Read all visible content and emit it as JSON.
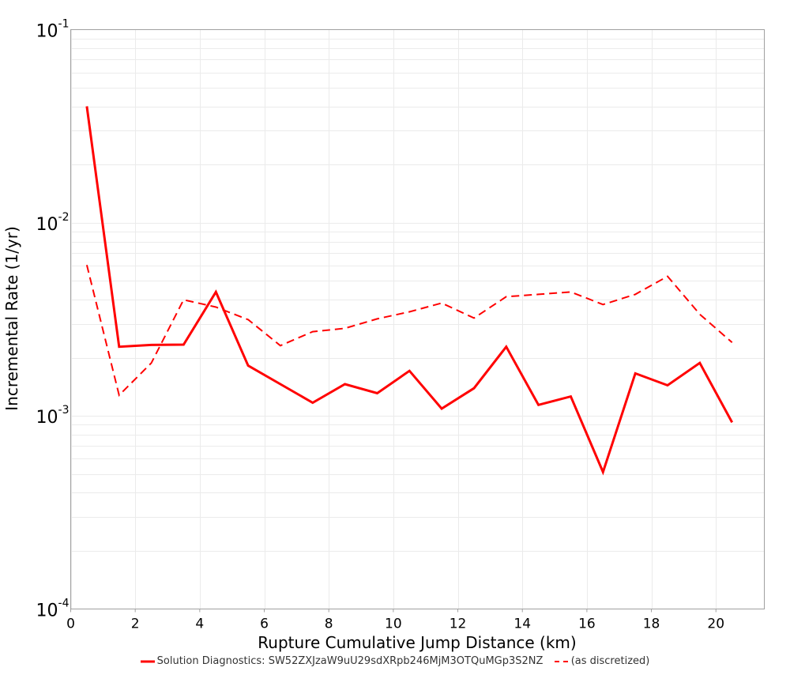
{
  "chart_data": {
    "type": "line",
    "title": "",
    "xlabel": "Rupture Cumulative Jump Distance (km)",
    "ylabel": "Incremental Rate (1/yr)",
    "xlim": [
      0,
      21.5
    ],
    "ylim": [
      0.0001,
      0.1
    ],
    "yscale": "log",
    "grid": true,
    "legend_position": "bottom",
    "x_ticks": [
      0,
      2,
      4,
      6,
      8,
      10,
      12,
      14,
      16,
      18,
      20
    ],
    "y_ticks": [
      {
        "base": "10",
        "exp": "-1",
        "value": 0.1
      },
      {
        "base": "10",
        "exp": "-2",
        "value": 0.01
      },
      {
        "base": "10",
        "exp": "-3",
        "value": 0.001
      },
      {
        "base": "10",
        "exp": "-4",
        "value": 0.0001
      }
    ],
    "x": [
      0.5,
      1.5,
      2.5,
      3.5,
      4.5,
      5.5,
      6.5,
      7.5,
      8.5,
      9.5,
      10.5,
      11.5,
      12.5,
      13.5,
      14.5,
      15.5,
      16.5,
      17.5,
      18.5,
      19.5,
      20.5
    ],
    "series": [
      {
        "name": "Solution Diagnostics: SW52ZXJzaW9uU29sdXRpb246MjM3OTQuMGp3S2NZ",
        "style": "solid",
        "color": "#ff0000",
        "values": [
          0.0401,
          0.00228,
          0.00233,
          0.00234,
          0.00438,
          0.00182,
          0.00146,
          0.00117,
          0.00146,
          0.00131,
          0.00171,
          0.00109,
          0.00139,
          0.00228,
          0.00114,
          0.00126,
          0.000512,
          0.00166,
          0.00144,
          0.00188,
          0.000925
        ]
      },
      {
        "name": "(as discretized)",
        "style": "dashed",
        "color": "#ff0000",
        "values": [
          0.00604,
          0.00128,
          0.00188,
          0.00399,
          0.00366,
          0.00315,
          0.00231,
          0.00273,
          0.00284,
          0.00318,
          0.00346,
          0.00384,
          0.00321,
          0.00414,
          0.00426,
          0.00438,
          0.00377,
          0.00426,
          0.00528,
          0.00336,
          0.0024
        ]
      }
    ]
  },
  "legend": {
    "items": [
      {
        "label": "Solution Diagnostics: SW52ZXJzaW9uU29sdXRpb246MjM3OTQuMGp3S2NZ"
      },
      {
        "label": "(as discretized)"
      }
    ]
  }
}
